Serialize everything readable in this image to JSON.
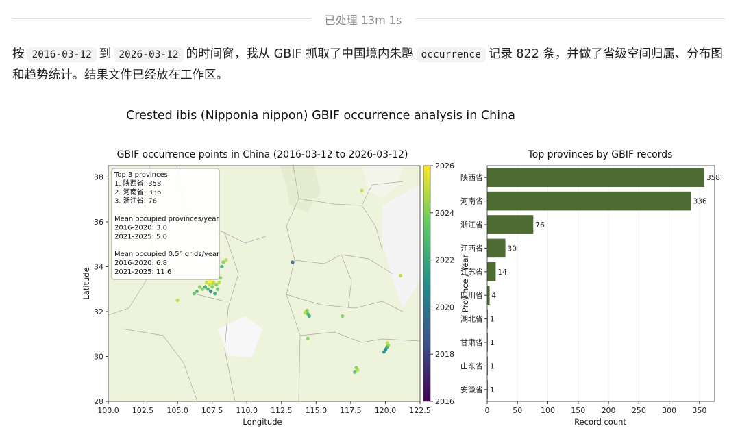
{
  "status": {
    "label": "已处理 13m 1s"
  },
  "message": {
    "p1": "按",
    "code1": "2016-03-12",
    "p2": "到",
    "code2": "2026-03-12",
    "p3": "的时间窗，我从 GBIF 抓取了中国境内朱鹮",
    "code3": "occurrence",
    "p4": "记录 822 条，并做了省级空间归属、分布图和趋势统计。结果文件已经放在工作区。"
  },
  "colors": {
    "land": "#eef3dc",
    "land_other": "#f2f2f2",
    "bar": "#4e6b34",
    "cmap_low": "#440154",
    "cmap_high": "#fde725"
  },
  "chart_data": [
    {
      "type": "scatter",
      "suptitle": "Crested ibis (Nipponia nippon) GBIF occurrence analysis in China",
      "title": "GBIF occurrence points in China (2016-03-12 to 2026-03-12)",
      "xlabel": "Longitude",
      "ylabel": "Latitude",
      "xlim": [
        100.0,
        122.5
      ],
      "ylim": [
        28,
        38.5
      ],
      "xticks": [
        "100.0",
        "102.5",
        "105.0",
        "107.5",
        "110.0",
        "112.5",
        "115.0",
        "117.5",
        "120.0",
        "122.5"
      ],
      "yticks": [
        "28",
        "30",
        "32",
        "34",
        "36",
        "38"
      ],
      "colorbar": {
        "min": 2016,
        "max": 2026,
        "ticks": [
          "2016",
          "2018",
          "2020",
          "2022",
          "2024",
          "2026"
        ]
      },
      "inset_text": [
        "Top 3 provinces",
        "1. 陕西省: 358",
        "2. 河南省: 336",
        "3. 浙江省: 76",
        "",
        "Mean occupied provinces/year",
        "2016-2020: 3.0",
        "2021-2025: 5.0",
        "",
        "Mean occupied 0.5° grids/year",
        "2016-2020: 6.8",
        "2021-2025: 11.6"
      ],
      "points": [
        {
          "x": 107.3,
          "y": 33.2,
          "year": 2025
        },
        {
          "x": 107.5,
          "y": 33.1,
          "year": 2024
        },
        {
          "x": 107.2,
          "y": 33.0,
          "year": 2023
        },
        {
          "x": 107.6,
          "y": 33.3,
          "year": 2025
        },
        {
          "x": 107.8,
          "y": 33.2,
          "year": 2024
        },
        {
          "x": 107.0,
          "y": 33.1,
          "year": 2022
        },
        {
          "x": 107.4,
          "y": 32.9,
          "year": 2020
        },
        {
          "x": 106.8,
          "y": 33.0,
          "year": 2024
        },
        {
          "x": 107.9,
          "y": 33.0,
          "year": 2023
        },
        {
          "x": 107.1,
          "y": 33.3,
          "year": 2025
        },
        {
          "x": 106.6,
          "y": 33.1,
          "year": 2024
        },
        {
          "x": 107.7,
          "y": 32.8,
          "year": 2022
        },
        {
          "x": 108.0,
          "y": 33.3,
          "year": 2025
        },
        {
          "x": 107.35,
          "y": 33.35,
          "year": 2026
        },
        {
          "x": 107.55,
          "y": 33.25,
          "year": 2025
        },
        {
          "x": 106.4,
          "y": 32.9,
          "year": 2023
        },
        {
          "x": 108.2,
          "y": 34.0,
          "year": 2022
        },
        {
          "x": 108.3,
          "y": 34.2,
          "year": 2024
        },
        {
          "x": 107.9,
          "y": 33.9,
          "year": 2025
        },
        {
          "x": 108.5,
          "y": 34.3,
          "year": 2025
        },
        {
          "x": 105.0,
          "y": 32.5,
          "year": 2025
        },
        {
          "x": 106.2,
          "y": 32.8,
          "year": 2023
        },
        {
          "x": 108.1,
          "y": 33.5,
          "year": 2024
        },
        {
          "x": 113.3,
          "y": 34.2,
          "year": 2019
        },
        {
          "x": 114.3,
          "y": 32.0,
          "year": 2024
        },
        {
          "x": 114.4,
          "y": 31.9,
          "year": 2023
        },
        {
          "x": 114.5,
          "y": 31.8,
          "year": 2022
        },
        {
          "x": 114.2,
          "y": 31.95,
          "year": 2025
        },
        {
          "x": 114.35,
          "y": 32.05,
          "year": 2024
        },
        {
          "x": 114.4,
          "y": 30.8,
          "year": 2024
        },
        {
          "x": 116.9,
          "y": 31.8,
          "year": 2024
        },
        {
          "x": 117.8,
          "y": 29.3,
          "year": 2023
        },
        {
          "x": 118.0,
          "y": 29.4,
          "year": 2025
        },
        {
          "x": 117.9,
          "y": 29.5,
          "year": 2024
        },
        {
          "x": 120.0,
          "y": 30.3,
          "year": 2020
        },
        {
          "x": 120.2,
          "y": 30.5,
          "year": 2024
        },
        {
          "x": 120.1,
          "y": 30.4,
          "year": 2022
        },
        {
          "x": 120.15,
          "y": 30.6,
          "year": 2025
        },
        {
          "x": 119.9,
          "y": 30.2,
          "year": 2021
        },
        {
          "x": 121.1,
          "y": 33.6,
          "year": 2025
        },
        {
          "x": 118.3,
          "y": 37.4,
          "year": 2025
        }
      ]
    },
    {
      "type": "bar",
      "orientation": "horizontal",
      "title": "Top provinces by GBIF records",
      "xlabel": "Record count",
      "ylabel": "Province / Year",
      "xlim": [
        0,
        375
      ],
      "xticks": [
        0,
        50,
        100,
        150,
        200,
        250,
        300,
        350
      ],
      "categories": [
        "陕西省",
        "河南省",
        "浙江省",
        "江西省",
        "江苏省",
        "四川省",
        "湖北省",
        "甘肃省",
        "山东省",
        "安徽省"
      ],
      "values": [
        358,
        336,
        76,
        30,
        14,
        4,
        1,
        1,
        1,
        1
      ]
    }
  ]
}
